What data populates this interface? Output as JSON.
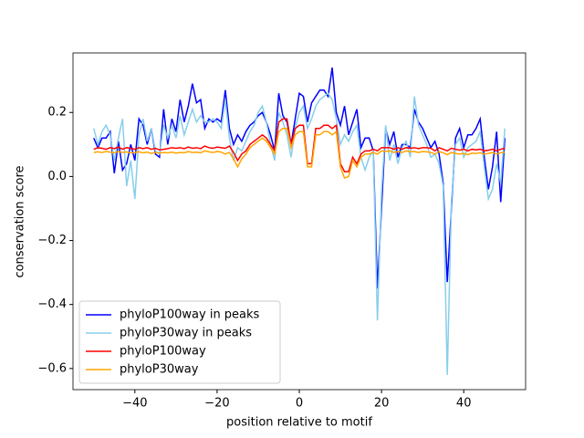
{
  "chart_data": {
    "type": "line",
    "xlabel": "position relative to motif",
    "ylabel": "conservation score",
    "x": [
      -50,
      -49,
      -48,
      -47,
      -46,
      -45,
      -44,
      -43,
      -42,
      -41,
      -40,
      -39,
      -38,
      -37,
      -36,
      -35,
      -34,
      -33,
      -32,
      -31,
      -30,
      -29,
      -28,
      -27,
      -26,
      -25,
      -24,
      -23,
      -22,
      -21,
      -20,
      -19,
      -18,
      -17,
      -16,
      -15,
      -14,
      -13,
      -12,
      -11,
      -10,
      -9,
      -8,
      -7,
      -6,
      -5,
      -4,
      -3,
      -2,
      -1,
      0,
      1,
      2,
      3,
      4,
      5,
      6,
      7,
      8,
      9,
      10,
      11,
      12,
      13,
      14,
      15,
      16,
      17,
      18,
      19,
      20,
      21,
      22,
      23,
      24,
      25,
      26,
      27,
      28,
      29,
      30,
      31,
      32,
      33,
      34,
      35,
      36,
      37,
      38,
      39,
      40,
      41,
      42,
      43,
      44,
      45,
      46,
      47,
      48,
      49,
      50
    ],
    "series": [
      {
        "name": "phyloP100way in peaks",
        "color": "#0000ff",
        "values": [
          0.12,
          0.09,
          0.12,
          0.12,
          0.14,
          0.01,
          0.11,
          0.02,
          0.04,
          0.1,
          0.05,
          0.18,
          0.16,
          0.1,
          0.15,
          0.07,
          0.06,
          0.21,
          0.1,
          0.18,
          0.14,
          0.24,
          0.17,
          0.22,
          0.29,
          0.23,
          0.24,
          0.15,
          0.18,
          0.17,
          0.18,
          0.17,
          0.27,
          0.15,
          0.1,
          0.13,
          0.11,
          0.14,
          0.16,
          0.17,
          0.19,
          0.2,
          0.17,
          0.13,
          0.08,
          0.26,
          0.19,
          0.17,
          0.1,
          0.18,
          0.26,
          0.25,
          0.17,
          0.23,
          0.25,
          0.27,
          0.27,
          0.25,
          0.34,
          0.2,
          0.16,
          0.22,
          0.13,
          0.17,
          0.21,
          0.09,
          0.12,
          0.12,
          0.08,
          -0.35,
          -0.1,
          0.15,
          0.1,
          0.14,
          0.06,
          0.1,
          0.1,
          0.09,
          0.21,
          0.17,
          0.15,
          0.12,
          0.09,
          0.11,
          0.07,
          -0.02,
          -0.33,
          -0.1,
          0.12,
          0.15,
          0.09,
          0.13,
          0.13,
          0.15,
          0.18,
          0.06,
          -0.04,
          0.03,
          0.14,
          -0.08,
          0.12
        ]
      },
      {
        "name": "phyloP30way in peaks",
        "color": "#87ceeb",
        "values": [
          0.15,
          0.1,
          0.14,
          0.16,
          0.13,
          0.05,
          0.12,
          0.18,
          -0.03,
          0.05,
          -0.07,
          0.13,
          0.18,
          0.11,
          0.15,
          0.08,
          0.07,
          0.16,
          0.12,
          0.16,
          0.12,
          0.19,
          0.13,
          0.17,
          0.21,
          0.17,
          0.19,
          0.17,
          0.17,
          0.18,
          0.17,
          0.15,
          0.24,
          0.12,
          0.05,
          0.09,
          0.08,
          0.11,
          0.14,
          0.16,
          0.2,
          0.22,
          0.17,
          0.1,
          0.05,
          0.2,
          0.17,
          0.13,
          0.06,
          0.15,
          0.2,
          0.22,
          0.15,
          0.18,
          0.22,
          0.24,
          0.25,
          0.26,
          0.24,
          0.18,
          0.1,
          0.13,
          0.11,
          0.14,
          0.16,
          0.06,
          0.02,
          0.06,
          0.08,
          -0.45,
          -0.05,
          0.16,
          0.05,
          0.1,
          0.04,
          0.09,
          0.11,
          0.06,
          0.25,
          0.16,
          0.13,
          0.1,
          0.06,
          0.07,
          0.04,
          -0.03,
          -0.62,
          -0.08,
          0.1,
          0.12,
          0.06,
          0.09,
          0.1,
          0.11,
          0.14,
          0.03,
          -0.07,
          -0.04,
          0.04,
          -0.02,
          0.15
        ]
      },
      {
        "name": "phyloP100way",
        "color": "#ff0000",
        "values": [
          0.085,
          0.09,
          0.088,
          0.085,
          0.09,
          0.087,
          0.092,
          0.085,
          0.09,
          0.088,
          0.085,
          0.09,
          0.087,
          0.09,
          0.085,
          0.088,
          0.083,
          0.085,
          0.087,
          0.09,
          0.088,
          0.09,
          0.087,
          0.092,
          0.088,
          0.09,
          0.087,
          0.095,
          0.09,
          0.088,
          0.092,
          0.09,
          0.088,
          0.095,
          0.075,
          0.05,
          0.07,
          0.08,
          0.1,
          0.11,
          0.12,
          0.13,
          0.12,
          0.1,
          0.08,
          0.17,
          0.18,
          0.18,
          0.1,
          0.15,
          0.16,
          0.16,
          0.04,
          0.04,
          0.15,
          0.15,
          0.16,
          0.16,
          0.15,
          0.16,
          0.04,
          0.015,
          0.015,
          0.06,
          0.04,
          0.07,
          0.08,
          0.08,
          0.085,
          0.08,
          0.09,
          0.09,
          0.09,
          0.085,
          0.09,
          0.085,
          0.09,
          0.088,
          0.09,
          0.087,
          0.09,
          0.09,
          0.088,
          0.08,
          0.09,
          0.085,
          0.08,
          0.088,
          0.085,
          0.082,
          0.085,
          0.08,
          0.085,
          0.083,
          0.085,
          0.08,
          0.082,
          0.085,
          0.08,
          0.085,
          0.088
        ]
      },
      {
        "name": "phyloP30way",
        "color": "#ffa500",
        "values": [
          0.075,
          0.077,
          0.075,
          0.078,
          0.076,
          0.074,
          0.078,
          0.075,
          0.077,
          0.073,
          0.075,
          0.077,
          0.074,
          0.076,
          0.072,
          0.075,
          0.073,
          0.075,
          0.074,
          0.076,
          0.073,
          0.075,
          0.074,
          0.078,
          0.075,
          0.076,
          0.074,
          0.08,
          0.077,
          0.075,
          0.078,
          0.076,
          0.07,
          0.075,
          0.055,
          0.03,
          0.055,
          0.07,
          0.09,
          0.1,
          0.11,
          0.12,
          0.11,
          0.09,
          0.07,
          0.14,
          0.15,
          0.15,
          0.09,
          0.13,
          0.14,
          0.14,
          0.03,
          0.03,
          0.13,
          0.13,
          0.14,
          0.14,
          0.13,
          0.14,
          0.03,
          -0.005,
          0.0,
          0.05,
          0.03,
          0.06,
          0.07,
          0.07,
          0.075,
          0.07,
          0.08,
          0.078,
          0.08,
          0.075,
          0.078,
          0.075,
          0.08,
          0.077,
          0.078,
          0.075,
          0.078,
          0.077,
          0.075,
          0.07,
          0.078,
          0.074,
          0.068,
          0.075,
          0.072,
          0.07,
          0.072,
          0.068,
          0.073,
          0.072,
          0.074,
          0.07,
          0.072,
          0.075,
          0.07,
          0.074,
          0.076
        ]
      }
    ],
    "xlim": [
      -55.05,
      55.05
    ],
    "ylim": [
      -0.666,
      0.386
    ],
    "xticks": [
      {
        "value": -40,
        "label": "−40"
      },
      {
        "value": -20,
        "label": "−20"
      },
      0,
      20,
      40
    ],
    "yticks": [
      {
        "value": -0.6,
        "label": "−0.6"
      },
      {
        "value": -0.4,
        "label": "−0.4"
      },
      {
        "value": -0.2,
        "label": "−0.2"
      },
      {
        "value": 0,
        "label": "0.0"
      },
      0.2
    ],
    "legend": "lower left"
  }
}
